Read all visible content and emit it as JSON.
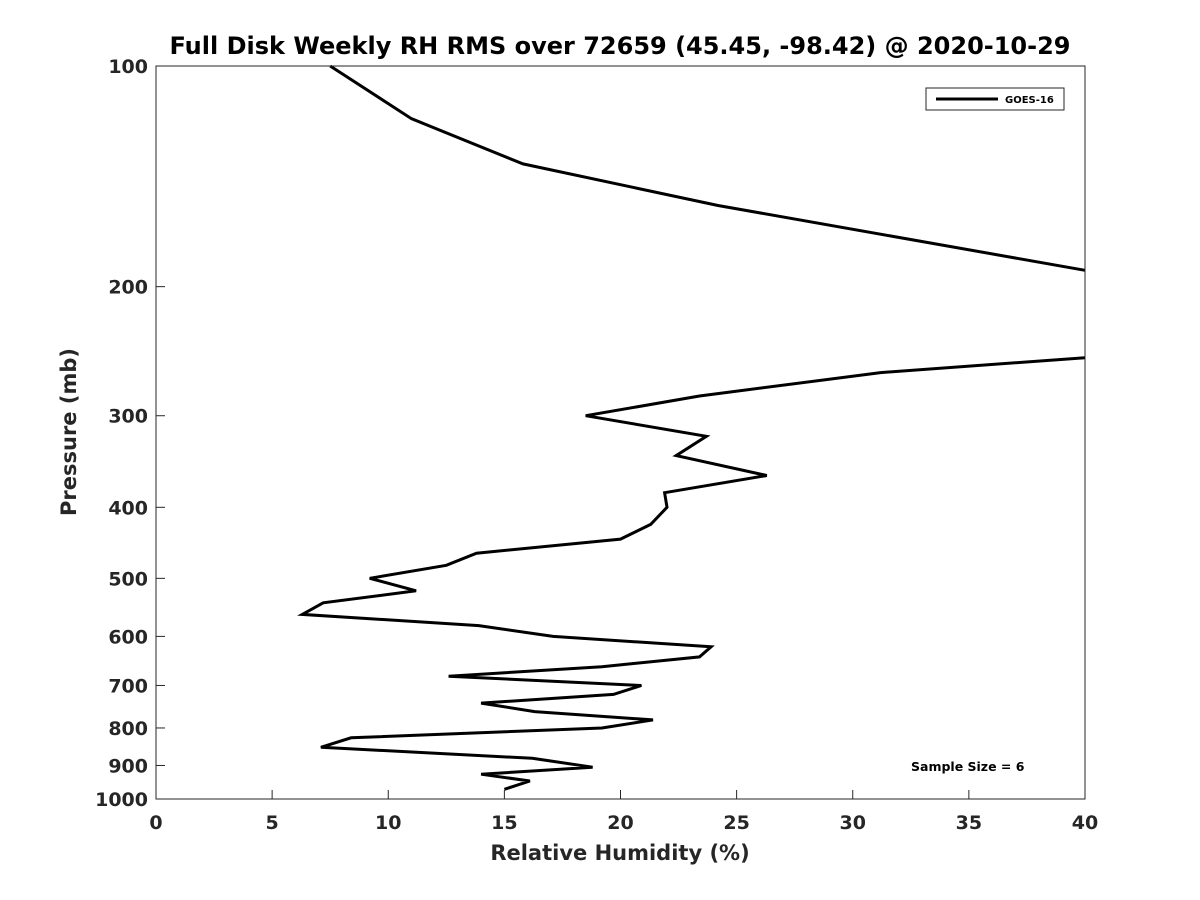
{
  "chart_data": {
    "type": "line",
    "title": "Full Disk Weekly RH RMS over 72659 (45.45, -98.42) @ 2020-10-29",
    "xlabel": "Relative Humidity (%)",
    "ylabel": "Pressure (mb)",
    "xlim": [
      0,
      40
    ],
    "ylim": [
      100,
      1000
    ],
    "y_scale": "log",
    "y_reversed": true,
    "x_ticks": [
      "0",
      "5",
      "10",
      "15",
      "20",
      "25",
      "30",
      "35",
      "40"
    ],
    "y_ticks": [
      "100",
      "200",
      "300",
      "400",
      "500",
      "600",
      "700",
      "800",
      "900",
      "1000"
    ],
    "grid": false,
    "legend_position": "top-right",
    "annotation": "Sample Size = 6",
    "series": [
      {
        "name": "GOES-16",
        "color": "#000000",
        "segments": [
          [
            [
              7.5,
              100
            ],
            [
              11,
              118
            ],
            [
              15.8,
              136
            ],
            [
              24.2,
              155
            ],
            [
              40,
              190
            ]
          ],
          [
            [
              40,
              250
            ],
            [
              31.2,
              262
            ],
            [
              23.4,
              282
            ],
            [
              18.5,
              300
            ],
            [
              23.7,
              320
            ],
            [
              22.4,
              340
            ],
            [
              26.3,
              362
            ],
            [
              21.9,
              382
            ],
            [
              22,
              400
            ],
            [
              21.3,
              422
            ],
            [
              20,
              442
            ],
            [
              13.8,
              462
            ],
            [
              12.5,
              480
            ],
            [
              9.2,
              500
            ],
            [
              11.2,
              520
            ],
            [
              7.2,
              540
            ],
            [
              6.3,
              560
            ],
            [
              13.9,
              580
            ],
            [
              17.1,
              600
            ],
            [
              23.9,
              620
            ],
            [
              23.4,
              640
            ],
            [
              19.2,
              660
            ],
            [
              12.6,
              680
            ],
            [
              20.9,
              700
            ],
            [
              19.7,
              720
            ],
            [
              14,
              740
            ],
            [
              16.3,
              760
            ],
            [
              21.4,
              780
            ],
            [
              19.2,
              800
            ],
            [
              8.4,
              825
            ],
            [
              7.1,
              850
            ],
            [
              16.2,
              880
            ],
            [
              18.8,
              905
            ],
            [
              14,
              925
            ],
            [
              16.1,
              945
            ],
            [
              15,
              970
            ]
          ]
        ]
      }
    ]
  }
}
